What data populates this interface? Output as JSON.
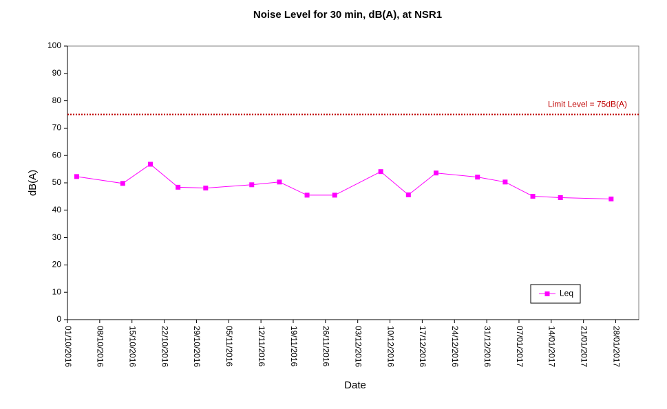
{
  "chart_data": {
    "type": "line",
    "title": "Noise Level for 30 min, dB(A), at NSR1",
    "x_label": "Date",
    "y_label": "dB(A)",
    "x": [
      "03/10/2016",
      "13/10/2016",
      "19/10/2016",
      "25/10/2016",
      "31/10/2016",
      "10/11/2016",
      "16/11/2016",
      "22/11/2016",
      "28/11/2016",
      "08/12/2016",
      "14/12/2016",
      "20/12/2016",
      "29/12/2016",
      "04/01/2017",
      "10/01/2017",
      "16/01/2017",
      "27/01/2017"
    ],
    "series": [
      {
        "name": "Leq",
        "color": "#ff00ff",
        "values": [
          52.3,
          49.8,
          56.8,
          48.4,
          48.1,
          49.3,
          50.3,
          45.5,
          45.5,
          54.1,
          45.6,
          53.6,
          52.1,
          50.3,
          45.1,
          44.6,
          44.1
        ]
      }
    ],
    "xlim": [
      "01/10/2016",
      "02/02/2017"
    ],
    "xticks": [
      "01/10/2016",
      "08/10/2016",
      "15/10/2016",
      "22/10/2016",
      "29/10/2016",
      "05/11/2016",
      "12/11/2016",
      "19/11/2016",
      "26/11/2016",
      "03/12/2016",
      "10/12/2016",
      "17/12/2016",
      "24/12/2016",
      "31/12/2016",
      "07/01/2017",
      "14/01/2017",
      "21/01/2017",
      "28/01/2017"
    ],
    "ylim": [
      0,
      100
    ],
    "yticks": [
      0,
      10,
      20,
      30,
      40,
      50,
      60,
      70,
      80,
      90,
      100
    ],
    "limit": {
      "value": 75,
      "label": "Limit Level = 75dB(A)",
      "color": "#c00000"
    },
    "legend": "lower right",
    "grid": false
  }
}
